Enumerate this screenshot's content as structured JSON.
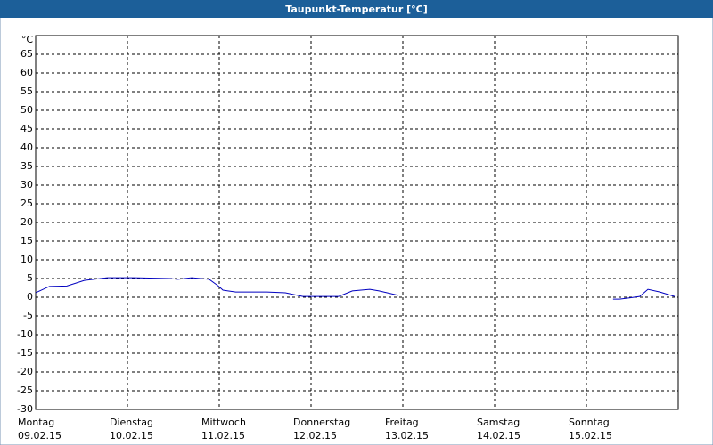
{
  "chart_data": {
    "type": "line",
    "title": "Taupunkt-Temperatur [°C]",
    "y_unit_label": "°C",
    "xlim": [
      0,
      7
    ],
    "xticks": [
      {
        "value": 0,
        "label": "Montag"
      },
      {
        "value": 1,
        "label": "Dienstag"
      },
      {
        "value": 2,
        "label": "Mittwoch"
      },
      {
        "value": 3,
        "label": "Donnerstag"
      },
      {
        "value": 4,
        "label": "Freitag"
      },
      {
        "value": 5,
        "label": "Samstag"
      },
      {
        "value": 6,
        "label": "Sonntag"
      }
    ],
    "xtick_dates": [
      "09.02.15",
      "10.02.15",
      "11.02.15",
      "12.02.15",
      "13.02.15",
      "14.02.15",
      "15.02.15"
    ],
    "ylim": [
      -30,
      70
    ],
    "yticks": [
      -30,
      -25,
      -20,
      -15,
      -10,
      -5,
      0,
      5,
      10,
      15,
      20,
      25,
      30,
      35,
      40,
      45,
      50,
      55,
      60,
      65
    ],
    "grid": true,
    "x": [
      0,
      0.15,
      0.34,
      0.53,
      0.78,
      1.07,
      1.46,
      1.55,
      1.7,
      1.89,
      1.99,
      2.04,
      2.18,
      2.52,
      2.72,
      2.91,
      3.3,
      3.45,
      3.64,
      3.74,
      3.95,
      5,
      6.29,
      6.36,
      6.46,
      6.58,
      6.67,
      6.8,
      6.96
    ],
    "series": [
      {
        "color": "#0000c0",
        "values": [
          1.2,
          2.9,
          3,
          4.5,
          5.2,
          5.2,
          5,
          4.8,
          5.2,
          4.8,
          3,
          1.9,
          1.4,
          1.4,
          1.2,
          0.2,
          0.2,
          1.7,
          2.1,
          1.7,
          0.5,
          null,
          -0.5,
          -0.5,
          -0.2,
          0.2,
          2.1,
          1.4,
          0.2
        ]
      }
    ]
  }
}
